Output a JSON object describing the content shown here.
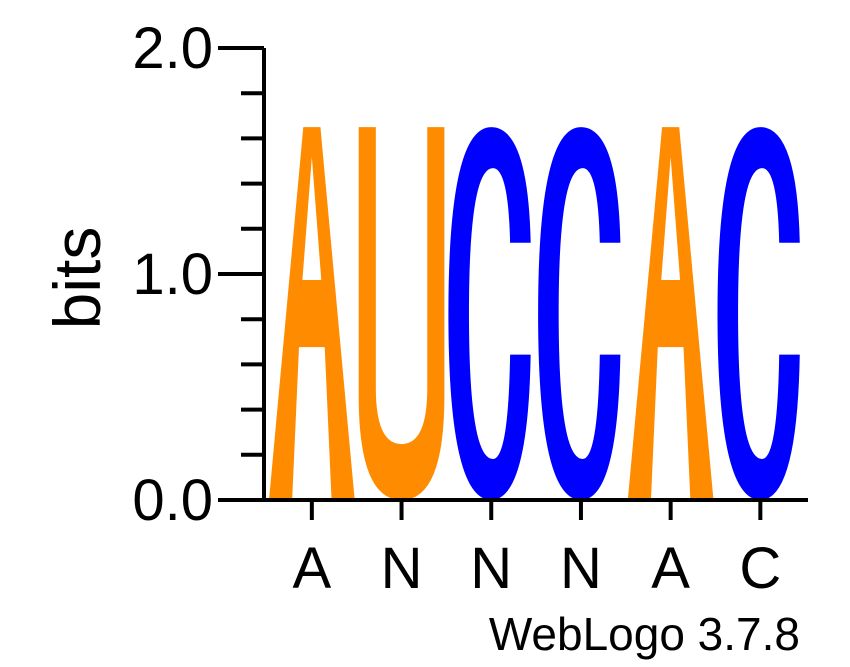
{
  "chart_data": {
    "type": "sequence-logo",
    "ylabel": "bits",
    "ylim": [
      0,
      2.0
    ],
    "yticks_major": [
      {
        "value": 0.0,
        "label": "0.0"
      },
      {
        "value": 1.0,
        "label": "1.0"
      },
      {
        "value": 2.0,
        "label": "2.0"
      }
    ],
    "ytick_minor_step": 0.2,
    "positions": [
      {
        "consensus": "A",
        "letters": [
          {
            "char": "A",
            "bits": 1.65
          }
        ]
      },
      {
        "consensus": "N",
        "letters": [
          {
            "char": "U",
            "bits": 1.65
          }
        ]
      },
      {
        "consensus": "N",
        "letters": [
          {
            "char": "C",
            "bits": 1.65
          }
        ]
      },
      {
        "consensus": "N",
        "letters": [
          {
            "char": "C",
            "bits": 1.65
          }
        ]
      },
      {
        "consensus": "A",
        "letters": [
          {
            "char": "A",
            "bits": 1.65
          }
        ]
      },
      {
        "consensus": "C",
        "letters": [
          {
            "char": "C",
            "bits": 1.65
          }
        ]
      }
    ],
    "colors": {
      "A": "#ff8c00",
      "U": "#ff8c00",
      "C": "#0000ff",
      "G": "#ff8c00"
    }
  },
  "credit": "WebLogo 3.7.8"
}
